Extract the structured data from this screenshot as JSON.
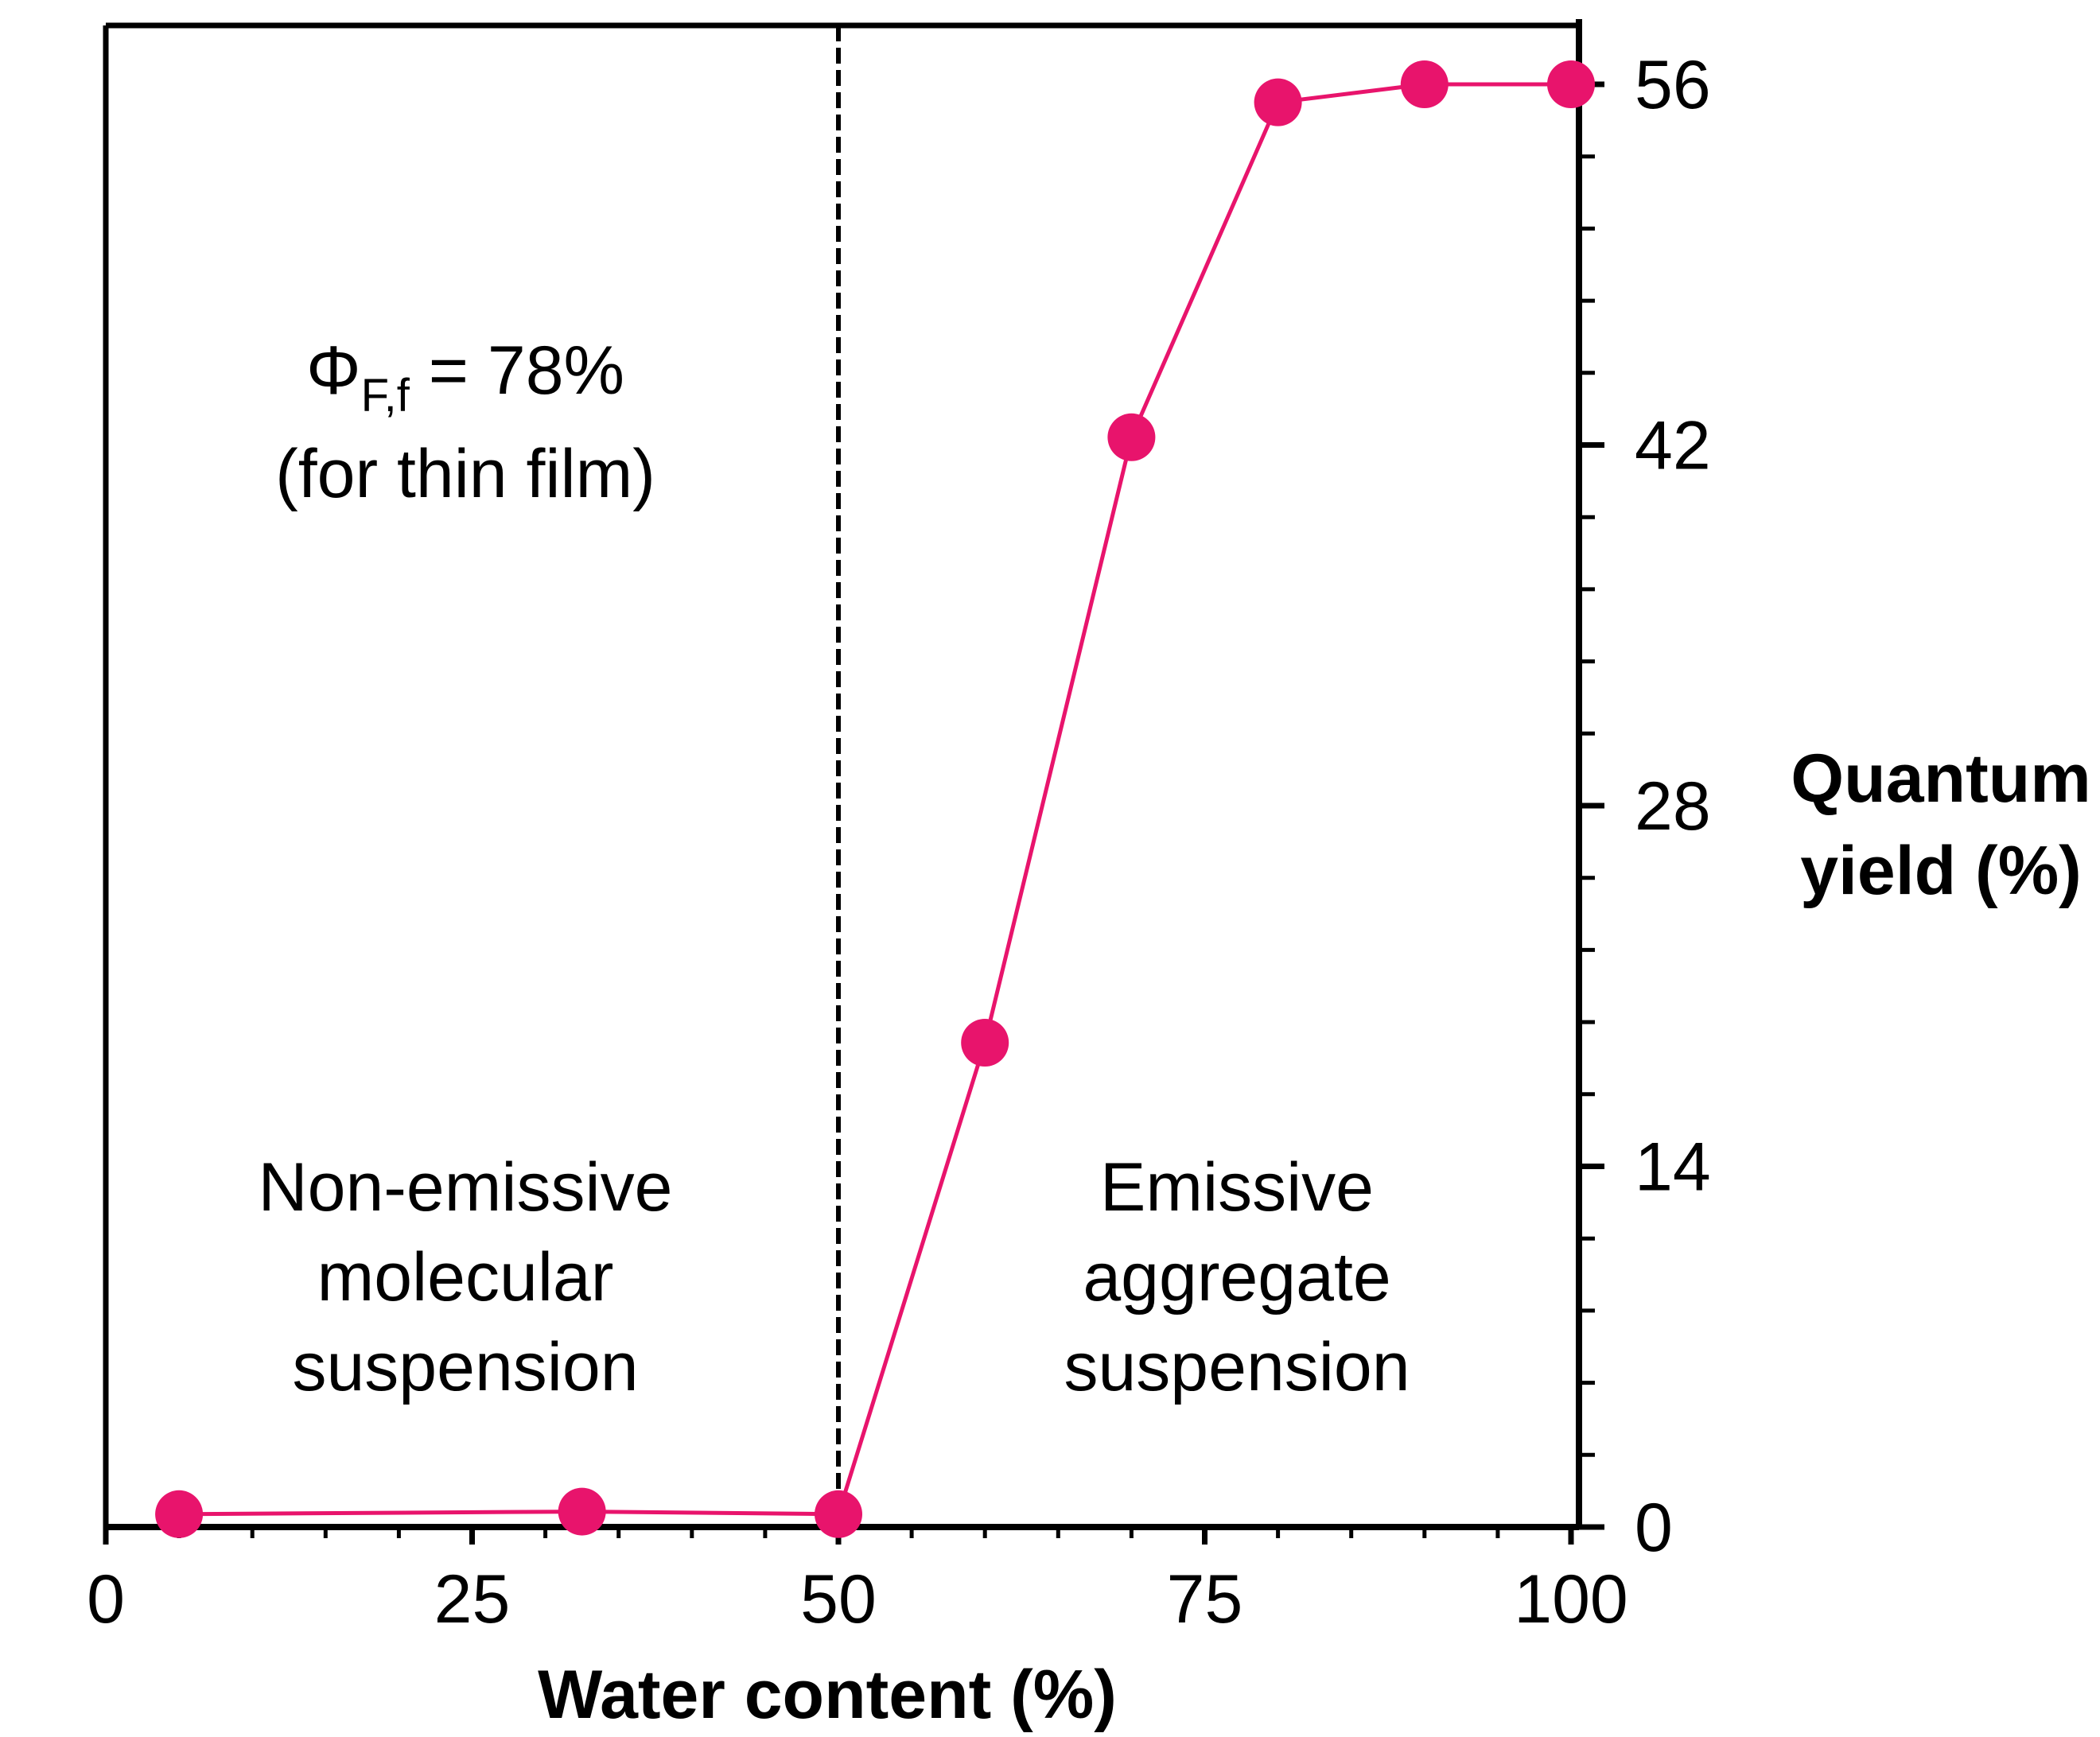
{
  "chart_data": {
    "type": "line",
    "title": "",
    "xlabel": "Water content (%)",
    "ylabel_line1": "Quantum",
    "ylabel_line2": "yield (%)",
    "xlim": [
      0,
      100
    ],
    "ylim": [
      0,
      56
    ],
    "xticks": [
      0,
      25,
      50,
      75,
      100
    ],
    "yticks": [
      0,
      14,
      28,
      42,
      56
    ],
    "y_axis_side": "right",
    "grid": false,
    "series": [
      {
        "color": "#e8146c",
        "x": [
          5,
          32.5,
          50,
          60,
          70,
          80,
          90,
          100
        ],
        "y": [
          0.5,
          0.6,
          0.5,
          18.8,
          42.3,
          55.3,
          56,
          56
        ]
      }
    ],
    "divider_x": 50,
    "annotations": {
      "phi_symbol": "Φ",
      "phi_subscript": "F,f",
      "phi_value": " = 78%",
      "phi_note": "(for thin film)",
      "left_region": [
        "Non-emissive",
        "molecular",
        "suspension"
      ],
      "right_region": [
        "Emissive",
        "aggregate",
        "suspension"
      ]
    }
  }
}
